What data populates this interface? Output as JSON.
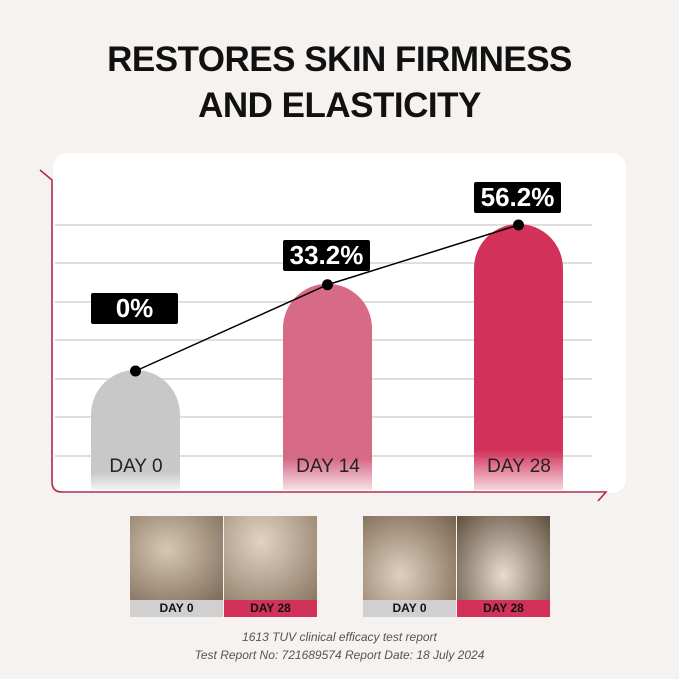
{
  "title": {
    "line1": "RESTORES SKIN FIRMNESS",
    "line2": "AND ELASTICITY"
  },
  "chart_data": {
    "type": "bar",
    "title": "RESTORES SKIN FIRMNESS AND ELASTICITY",
    "categories": [
      "DAY 0",
      "DAY 14",
      "DAY 28"
    ],
    "values": [
      0,
      33.2,
      56.2
    ],
    "data_labels": [
      "0%",
      "33.2%",
      "56.2%"
    ],
    "colors": [
      "#c8c8c8",
      "#d66a87",
      "#d2325a"
    ],
    "line_overlay": true,
    "grid": true,
    "axis_color": "#b02a4e"
  },
  "comparisons": [
    {
      "before": "DAY 0",
      "after": "DAY 28"
    },
    {
      "before": "DAY 0",
      "after": "DAY 28"
    }
  ],
  "footer": {
    "line1": "1613 TUV clinical efficacy test report",
    "line2": "Test Report No: 721689574 Report Date: 18 July 2024"
  }
}
